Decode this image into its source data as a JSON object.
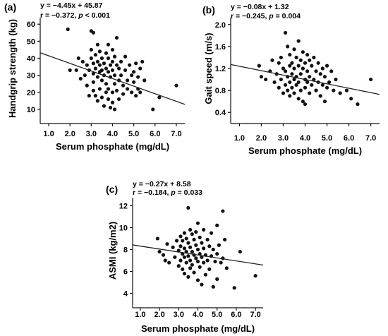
{
  "chart_data": [
    {
      "type": "scatter",
      "panel": "(a)",
      "equation": "y = −4.45x + 45.87",
      "stats_prefix": "r = −0.372, ",
      "stats_p": "p",
      "stats_suffix": " < 0.001",
      "xlabel": "Serum phosphate (mg/dL)",
      "ylabel": "Handgrip strength (kg)",
      "xlim": [
        0.6,
        7.4
      ],
      "ylim": [
        5,
        63
      ],
      "xticks": [
        1.0,
        2.0,
        3.0,
        4.0,
        5.0,
        6.0,
        7.0
      ],
      "xtick_labels": [
        "1.0",
        "2.0",
        "3.0",
        "4.0",
        "5.0",
        "6.0",
        "7.0"
      ],
      "yticks": [
        10,
        20,
        30,
        40,
        50,
        60
      ],
      "ytick_labels": [
        "10",
        "20",
        "30",
        "40",
        "50",
        "60"
      ],
      "regression": {
        "slope": -4.45,
        "intercept": 45.87
      },
      "points": [
        [
          1.9,
          57
        ],
        [
          2.0,
          33
        ],
        [
          2.3,
          33
        ],
        [
          2.4,
          40
        ],
        [
          2.5,
          28
        ],
        [
          2.6,
          38
        ],
        [
          2.7,
          30
        ],
        [
          2.8,
          36
        ],
        [
          2.8,
          24
        ],
        [
          2.9,
          18
        ],
        [
          2.9,
          33
        ],
        [
          3.0,
          56
        ],
        [
          3.0,
          45
        ],
        [
          3.0,
          40
        ],
        [
          3.1,
          55
        ],
        [
          3.1,
          37
        ],
        [
          3.1,
          31
        ],
        [
          3.1,
          26
        ],
        [
          3.1,
          21
        ],
        [
          3.2,
          42
        ],
        [
          3.2,
          34
        ],
        [
          3.2,
          18
        ],
        [
          3.3,
          48
        ],
        [
          3.3,
          38
        ],
        [
          3.3,
          29
        ],
        [
          3.3,
          15
        ],
        [
          3.4,
          44
        ],
        [
          3.4,
          36
        ],
        [
          3.4,
          32
        ],
        [
          3.4,
          22
        ],
        [
          3.5,
          40
        ],
        [
          3.5,
          33
        ],
        [
          3.5,
          27
        ],
        [
          3.5,
          17
        ],
        [
          3.6,
          37
        ],
        [
          3.6,
          30
        ],
        [
          3.6,
          12
        ],
        [
          3.7,
          43
        ],
        [
          3.7,
          34
        ],
        [
          3.7,
          25
        ],
        [
          3.7,
          20
        ],
        [
          3.8,
          48
        ],
        [
          3.8,
          40
        ],
        [
          3.8,
          32
        ],
        [
          3.8,
          22
        ],
        [
          3.8,
          16
        ],
        [
          3.9,
          36
        ],
        [
          3.9,
          29
        ],
        [
          3.9,
          11
        ],
        [
          4.0,
          45
        ],
        [
          4.0,
          38
        ],
        [
          4.0,
          33
        ],
        [
          4.0,
          20
        ],
        [
          4.0,
          14
        ],
        [
          4.1,
          41
        ],
        [
          4.1,
          30
        ],
        [
          4.1,
          25
        ],
        [
          4.1,
          10
        ],
        [
          4.2,
          52
        ],
        [
          4.2,
          36
        ],
        [
          4.2,
          21
        ],
        [
          4.3,
          34
        ],
        [
          4.3,
          27
        ],
        [
          4.3,
          16
        ],
        [
          4.4,
          38
        ],
        [
          4.4,
          30
        ],
        [
          4.5,
          24
        ],
        [
          4.5,
          19
        ],
        [
          4.6,
          33
        ],
        [
          4.6,
          41
        ],
        [
          4.7,
          27
        ],
        [
          4.7,
          22
        ],
        [
          4.8,
          36
        ],
        [
          4.9,
          30
        ],
        [
          4.9,
          20
        ],
        [
          5.0,
          32
        ],
        [
          5.0,
          26
        ],
        [
          5.1,
          37
        ],
        [
          5.1,
          18
        ],
        [
          5.2,
          29
        ],
        [
          5.2,
          22
        ],
        [
          5.3,
          34
        ],
        [
          5.3,
          20
        ],
        [
          5.4,
          38
        ],
        [
          5.5,
          27
        ],
        [
          5.9,
          10
        ],
        [
          6.2,
          17
        ],
        [
          7.0,
          24
        ]
      ]
    },
    {
      "type": "scatter",
      "panel": "(b)",
      "equation": "y = −0.08x + 1.32",
      "stats_prefix": "r = −0.245, ",
      "stats_p": "p",
      "stats_suffix": " = 0.004",
      "xlabel": "Serum phosphate (mg/dL)",
      "ylabel": "Gait speed (m/s)",
      "xlim": [
        0.6,
        7.4
      ],
      "ylim": [
        0.3,
        2.1
      ],
      "xticks": [
        1.0,
        2.0,
        3.0,
        4.0,
        5.0,
        6.0,
        7.0
      ],
      "xtick_labels": [
        "1.0",
        "2.0",
        "3.0",
        "4.0",
        "5.0",
        "6.0",
        "7.0"
      ],
      "yticks": [
        0.4,
        0.8,
        1.2,
        1.6,
        2.0
      ],
      "ytick_labels": [
        "0.4",
        "0.8",
        "1.2",
        "1.6",
        "2.0"
      ],
      "regression": {
        "slope": -0.08,
        "intercept": 1.32
      },
      "points": [
        [
          1.9,
          1.25
        ],
        [
          2.0,
          1.05
        ],
        [
          2.2,
          1.0
        ],
        [
          2.4,
          1.15
        ],
        [
          2.5,
          1.35
        ],
        [
          2.6,
          0.95
        ],
        [
          2.7,
          1.1
        ],
        [
          2.8,
          1.3
        ],
        [
          2.8,
          0.85
        ],
        [
          2.9,
          1.4
        ],
        [
          2.9,
          1.0
        ],
        [
          3.0,
          1.2
        ],
        [
          3.0,
          0.75
        ],
        [
          3.1,
          1.85
        ],
        [
          3.1,
          1.15
        ],
        [
          3.1,
          0.9
        ],
        [
          3.2,
          1.6
        ],
        [
          3.2,
          1.05
        ],
        [
          3.2,
          0.8
        ],
        [
          3.3,
          1.45
        ],
        [
          3.3,
          1.25
        ],
        [
          3.3,
          0.95
        ],
        [
          3.3,
          0.7
        ],
        [
          3.4,
          1.3
        ],
        [
          3.4,
          1.1
        ],
        [
          3.4,
          0.85
        ],
        [
          3.5,
          1.55
        ],
        [
          3.5,
          1.2
        ],
        [
          3.5,
          1.0
        ],
        [
          3.5,
          0.75
        ],
        [
          3.6,
          1.4
        ],
        [
          3.6,
          1.05
        ],
        [
          3.6,
          0.9
        ],
        [
          3.7,
          1.7
        ],
        [
          3.7,
          1.25
        ],
        [
          3.7,
          0.95
        ],
        [
          3.7,
          0.65
        ],
        [
          3.8,
          1.35
        ],
        [
          3.8,
          1.1
        ],
        [
          3.8,
          0.8
        ],
        [
          3.9,
          1.5
        ],
        [
          3.9,
          1.2
        ],
        [
          3.9,
          0.6
        ],
        [
          4.0,
          1.3
        ],
        [
          4.0,
          1.0
        ],
        [
          4.0,
          0.85
        ],
        [
          4.0,
          0.55
        ],
        [
          4.1,
          1.45
        ],
        [
          4.1,
          1.15
        ],
        [
          4.1,
          0.95
        ],
        [
          4.2,
          1.35
        ],
        [
          4.2,
          1.05
        ],
        [
          4.2,
          0.75
        ],
        [
          4.3,
          1.25
        ],
        [
          4.3,
          0.9
        ],
        [
          4.4,
          1.4
        ],
        [
          4.4,
          1.0
        ],
        [
          4.5,
          1.15
        ],
        [
          4.5,
          0.8
        ],
        [
          4.6,
          1.3
        ],
        [
          4.6,
          0.95
        ],
        [
          4.7,
          1.1
        ],
        [
          4.7,
          0.7
        ],
        [
          4.8,
          1.2
        ],
        [
          4.8,
          0.9
        ],
        [
          4.9,
          1.05
        ],
        [
          4.9,
          0.6
        ],
        [
          5.0,
          1.25
        ],
        [
          5.0,
          0.85
        ],
        [
          5.1,
          0.95
        ],
        [
          5.2,
          1.15
        ],
        [
          5.3,
          0.8
        ],
        [
          5.4,
          1.0
        ],
        [
          5.6,
          0.75
        ],
        [
          5.9,
          0.8
        ],
        [
          6.1,
          0.65
        ],
        [
          6.4,
          0.55
        ],
        [
          7.0,
          1.0
        ]
      ]
    },
    {
      "type": "scatter",
      "panel": "(c)",
      "equation": "y = −0.27x + 8.58",
      "stats_prefix": "r = −0.184, ",
      "stats_p": "p",
      "stats_suffix": " = 0.033",
      "xlabel": "Serum phosphate (mg/dL)",
      "ylabel": "ASMI (kg/m2)",
      "xlim": [
        0.6,
        7.4
      ],
      "ylim": [
        3.2,
        12.6
      ],
      "xticks": [
        1.0,
        2.0,
        3.0,
        4.0,
        5.0,
        6.0,
        7.0
      ],
      "xtick_labels": [
        "1.0",
        "2.0",
        "3.0",
        "4.0",
        "5.0",
        "6.0",
        "7.0"
      ],
      "yticks": [
        4,
        6,
        8,
        10,
        12
      ],
      "ytick_labels": [
        "4",
        "6",
        "8",
        "10",
        "12"
      ],
      "regression": {
        "slope": -0.27,
        "intercept": 8.58
      },
      "points": [
        [
          1.9,
          9.0
        ],
        [
          2.0,
          7.8
        ],
        [
          2.2,
          7.5
        ],
        [
          2.3,
          7.0
        ],
        [
          2.4,
          8.5
        ],
        [
          2.5,
          6.8
        ],
        [
          2.7,
          8.2
        ],
        [
          2.8,
          7.3
        ],
        [
          2.9,
          8.8
        ],
        [
          3.0,
          6.5
        ],
        [
          3.0,
          7.9
        ],
        [
          3.1,
          9.2
        ],
        [
          3.1,
          8.3
        ],
        [
          3.1,
          7.0
        ],
        [
          3.2,
          8.8
        ],
        [
          3.2,
          7.6
        ],
        [
          3.2,
          6.2
        ],
        [
          3.3,
          9.5
        ],
        [
          3.3,
          8.1
        ],
        [
          3.3,
          7.3
        ],
        [
          3.3,
          5.8
        ],
        [
          3.4,
          9.0
        ],
        [
          3.4,
          7.8
        ],
        [
          3.4,
          6.8
        ],
        [
          3.5,
          11.8
        ],
        [
          3.5,
          8.6
        ],
        [
          3.5,
          7.4
        ],
        [
          3.5,
          5.5
        ],
        [
          3.6,
          9.8
        ],
        [
          3.6,
          8.2
        ],
        [
          3.6,
          7.0
        ],
        [
          3.6,
          6.3
        ],
        [
          3.7,
          9.4
        ],
        [
          3.7,
          7.8
        ],
        [
          3.7,
          6.6
        ],
        [
          3.8,
          8.9
        ],
        [
          3.8,
          7.5
        ],
        [
          3.8,
          5.9
        ],
        [
          3.9,
          9.6
        ],
        [
          3.9,
          8.4
        ],
        [
          3.9,
          7.2
        ],
        [
          4.0,
          10.4
        ],
        [
          4.0,
          8.0
        ],
        [
          4.0,
          6.9
        ],
        [
          4.0,
          5.2
        ],
        [
          4.1,
          9.1
        ],
        [
          4.1,
          7.6
        ],
        [
          4.1,
          6.4
        ],
        [
          4.2,
          8.6
        ],
        [
          4.2,
          7.3
        ],
        [
          4.2,
          4.8
        ],
        [
          4.3,
          9.8
        ],
        [
          4.3,
          8.1
        ],
        [
          4.3,
          6.8
        ],
        [
          4.4,
          7.5
        ],
        [
          4.4,
          5.7
        ],
        [
          4.5,
          8.9
        ],
        [
          4.5,
          7.0
        ],
        [
          4.6,
          8.3
        ],
        [
          4.6,
          6.2
        ],
        [
          4.7,
          9.5
        ],
        [
          4.7,
          7.4
        ],
        [
          4.8,
          8.0
        ],
        [
          4.8,
          4.6
        ],
        [
          4.9,
          6.9
        ],
        [
          5.0,
          10.2
        ],
        [
          5.0,
          7.6
        ],
        [
          5.0,
          5.3
        ],
        [
          5.1,
          8.4
        ],
        [
          5.2,
          6.8
        ],
        [
          5.3,
          11.5
        ],
        [
          5.3,
          7.2
        ],
        [
          5.4,
          8.9
        ],
        [
          5.5,
          6.3
        ],
        [
          5.9,
          4.5
        ],
        [
          6.2,
          7.8
        ],
        [
          7.0,
          5.6
        ]
      ]
    }
  ]
}
